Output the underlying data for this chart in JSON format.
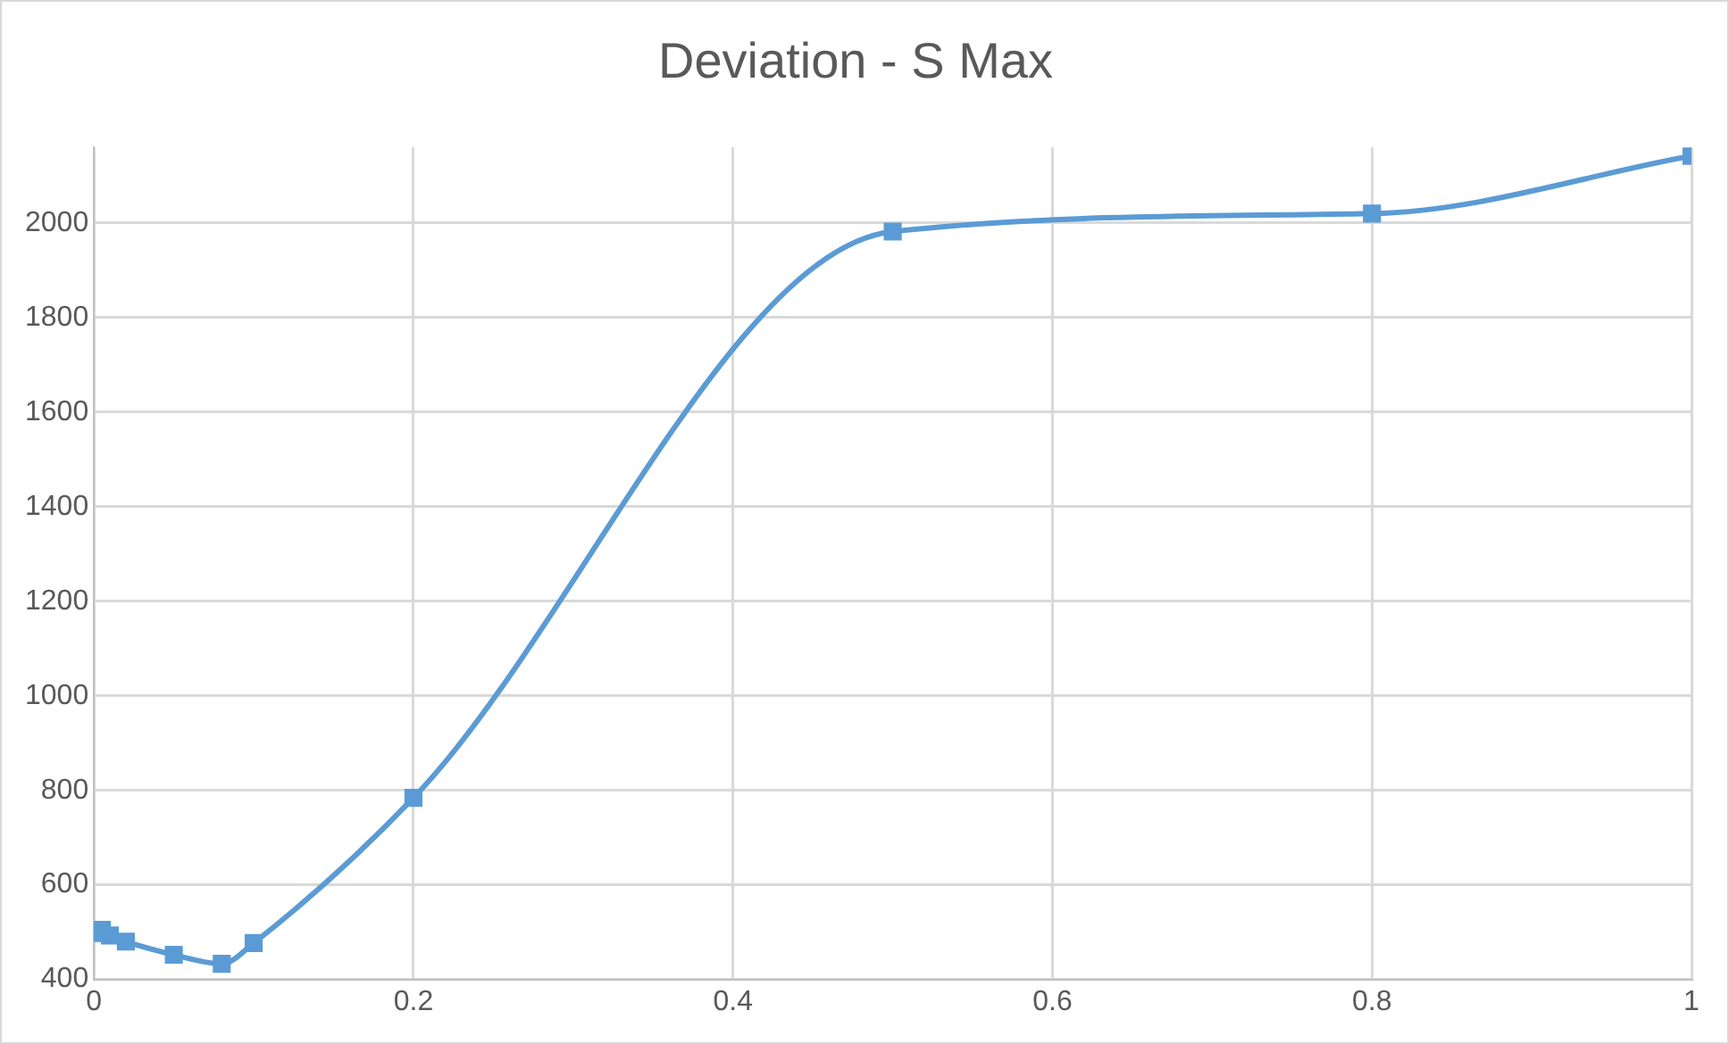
{
  "chart_data": {
    "type": "line",
    "title": "Deviation - S Max",
    "x": [
      0.002,
      0.005,
      0.01,
      0.02,
      0.05,
      0.08,
      0.1,
      0.2,
      0.5,
      0.8,
      1
    ],
    "series": [
      {
        "color": "#5b9bd5",
        "values": [
          498,
          505,
          493,
          480,
          452,
          433,
          477,
          784,
          1982,
          2020,
          2142
        ]
      }
    ],
    "xlim": [
      0,
      1
    ],
    "xticks": [
      0,
      0.2,
      0.4,
      0.6,
      0.8,
      1
    ],
    "ylim": [
      400,
      2160
    ],
    "yticks": [
      400,
      600,
      800,
      1000,
      1200,
      1400,
      1600,
      1800,
      2000
    ],
    "grid": true,
    "marker": "square",
    "line_style": "solid"
  }
}
